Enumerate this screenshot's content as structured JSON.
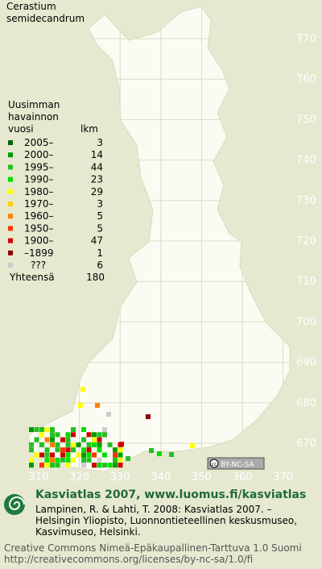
{
  "title_lines": [
    "Cerastium",
    "semidecandrum"
  ],
  "legend": {
    "heading_lines": [
      "Uusimman",
      "havainnon",
      "vuosi"
    ],
    "count_heading": "lkm",
    "items": [
      {
        "label": "2005–",
        "count": 3,
        "color": "#006400"
      },
      {
        "label": "2000–",
        "count": 14,
        "color": "#009a00"
      },
      {
        "label": "1995–",
        "count": 44,
        "color": "#22c022"
      },
      {
        "label": "1990–",
        "count": 23,
        "color": "#00dd00"
      },
      {
        "label": "1980–",
        "count": 29,
        "color": "#ffff00"
      },
      {
        "label": "1970–",
        "count": 3,
        "color": "#ffcc00"
      },
      {
        "label": "1960–",
        "count": 5,
        "color": "#ff8000"
      },
      {
        "label": "1950–",
        "count": 5,
        "color": "#ff3300"
      },
      {
        "label": "1900–",
        "count": 47,
        "color": "#d00000"
      },
      {
        "label": "–1899",
        "count": 1,
        "color": "#8b0000"
      },
      {
        "label": "???",
        "count": 6,
        "color": "#cccccc"
      }
    ],
    "total_label": "Yhteensä",
    "total": 180
  },
  "grid": {
    "y_labels": [
      770,
      760,
      750,
      740,
      730,
      720,
      710,
      700,
      690,
      680,
      670
    ],
    "x_labels": [
      310,
      320,
      330,
      340,
      350,
      360,
      370
    ]
  },
  "badge": "BY-NC-SA",
  "footer": {
    "heading": "Kasviatlas 2007, www.luomus.fi/kasviatlas",
    "citation_lines": [
      "Lampinen, R. & Lahti, T. 2008: Kasviatlas 2007. –",
      "Helsingin Yliopisto, Luonnontieteellinen keskusmuseo,",
      "Kasvimuseo, Helsinki."
    ],
    "license_lines": [
      "Creative Commons Nimeä-Epäkaupallinen-Tarttuva 1.0 Suomi",
      "http://creativecommons.org/licenses/by-nc-sa/1.0/fi"
    ]
  }
}
